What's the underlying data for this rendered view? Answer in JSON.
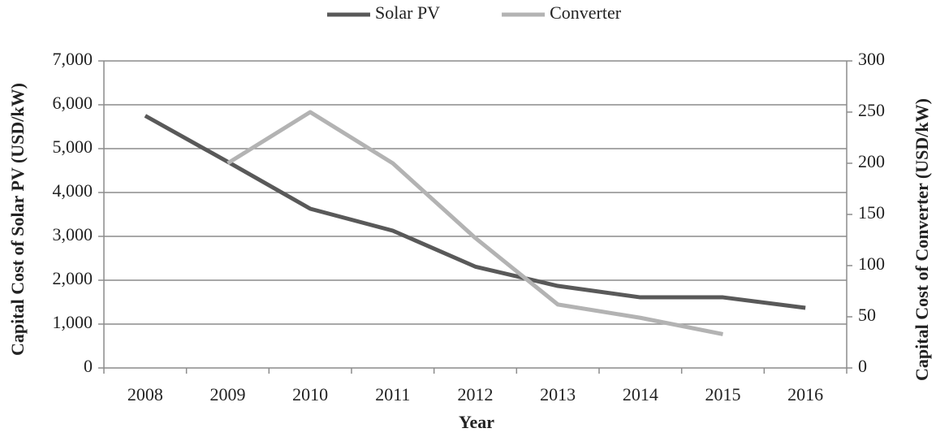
{
  "chart_data": {
    "type": "line",
    "categories": [
      "2008",
      "2009",
      "2010",
      "2011",
      "2012",
      "2013",
      "2014",
      "2015",
      "2016"
    ],
    "series": [
      {
        "name": "Solar PV",
        "color": "#595959",
        "values": [
          5750,
          4700,
          3630,
          3130,
          2310,
          1870,
          1610,
          1610,
          1370
        ]
      },
      {
        "name": "Converter",
        "color": "#b3b3b3",
        "axis": "y2",
        "values": [
          null,
          200,
          250,
          200,
          127,
          62,
          49,
          33,
          null
        ]
      }
    ],
    "xlabel": "Year",
    "ylabel": "Capital Cost of Solar PV (USD/kW)",
    "y2label": "Capital Cost of Converter (USD/kW)",
    "ylim": [
      0,
      7000
    ],
    "yticks": [
      0,
      {
        "value": 1000,
        "label": "1,000"
      },
      {
        "value": 2000,
        "label": "2,000"
      },
      {
        "value": 3000,
        "label": "3,000"
      },
      {
        "value": 4000,
        "label": "4,000"
      },
      {
        "value": 5000,
        "label": "5,000"
      },
      {
        "value": 6000,
        "label": "6,000"
      },
      {
        "value": 7000,
        "label": "7,000"
      }
    ],
    "y2lim": [
      0,
      300
    ],
    "y2ticks": [
      0,
      50,
      100,
      150,
      200,
      250,
      300
    ],
    "grid": true,
    "legend": "top"
  }
}
